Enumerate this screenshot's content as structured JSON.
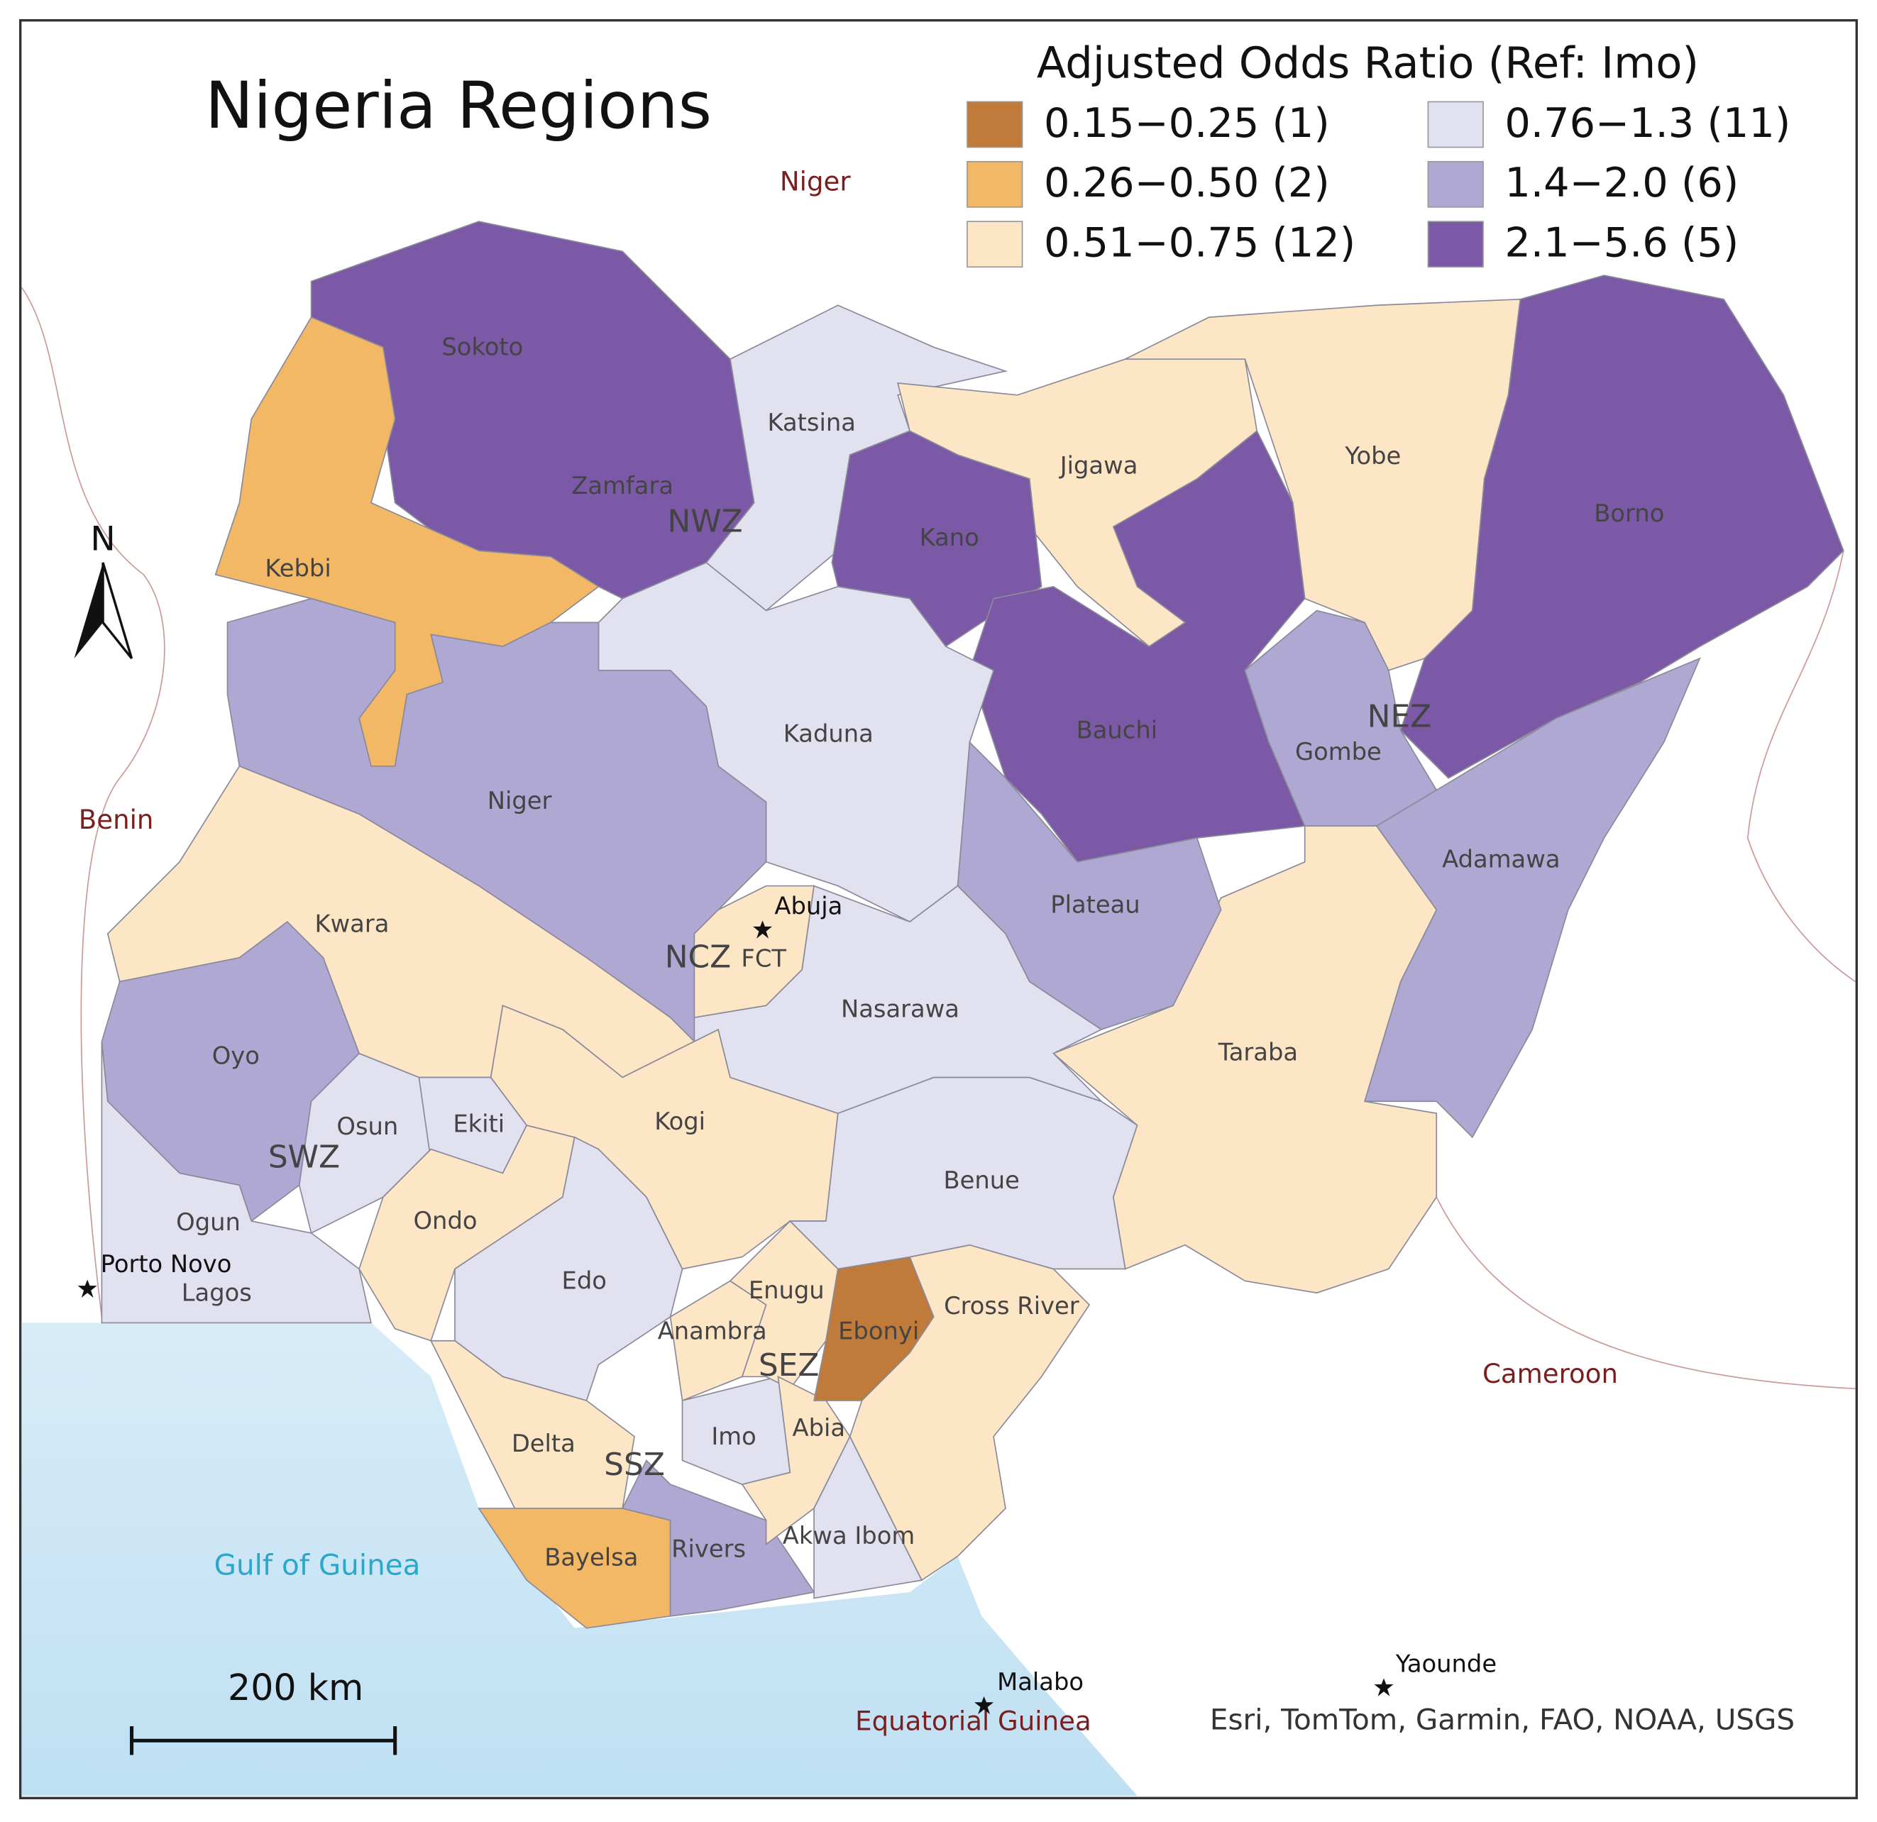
{
  "title": "Nigeria Regions",
  "legend": {
    "title": "Adjusted Odds Ratio (Ref: Imo)",
    "items": [
      {
        "label": "0.15−0.25 (1)",
        "color": "#c07a3a"
      },
      {
        "label": "0.26−0.50 (2)",
        "color": "#f2b866"
      },
      {
        "label": "0.51−0.75 (12)",
        "color": "#fde6c6"
      },
      {
        "label": "0.76−1.3 (11)",
        "color": "#e1e1f0"
      },
      {
        "label": "1.4−2.0 (6)",
        "color": "#aea8d3"
      },
      {
        "label": "2.1−5.6 (5)",
        "color": "#7b59a6"
      }
    ]
  },
  "states": [
    "Sokoto",
    "Zamfara",
    "Katsina",
    "Jigawa",
    "Kano",
    "Yobe",
    "Borno",
    "Kebbi",
    "Kaduna",
    "Bauchi",
    "Gombe",
    "Niger",
    "Adamawa",
    "Plateau",
    "FCT",
    "Kwara",
    "Nasarawa",
    "Taraba",
    "Oyo",
    "Osun",
    "Ekiti",
    "Kogi",
    "Benue",
    "Ogun",
    "Ondo",
    "Lagos",
    "Edo",
    "Enugu",
    "Ebonyi",
    "Cross River",
    "Anambra",
    "Delta",
    "Imo",
    "Abia",
    "Akwa Ibom",
    "Bayelsa",
    "Rivers"
  ],
  "zones": [
    "NWZ",
    "NEZ",
    "NCZ",
    "SWZ",
    "SEZ",
    "SSZ"
  ],
  "countries": [
    "Niger",
    "Benin",
    "Cameroon",
    "Equatorial Guinea"
  ],
  "places": [
    "Abuja",
    "Porto Novo",
    "Malabo",
    "Yaounde"
  ],
  "water": "Gulf of Guinea",
  "north": "N",
  "scale_bar": "200 km",
  "attribution": "Esri, TomTom, Garmin, FAO, NOAA, USGS"
}
